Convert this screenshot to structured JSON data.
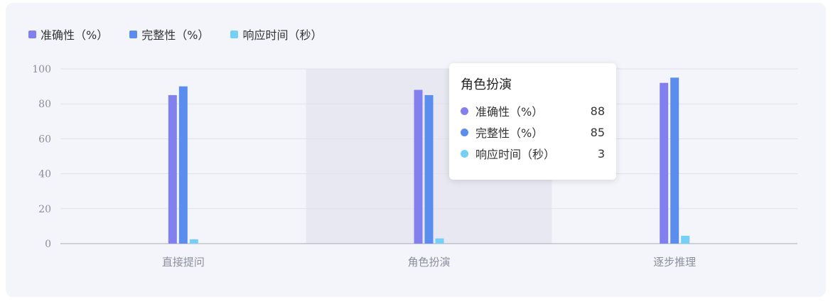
{
  "chart_data": {
    "type": "bar",
    "categories": [
      "直接提问",
      "角色扮演",
      "逐步推理"
    ],
    "series": [
      {
        "name": "准确性（%）",
        "values": [
          85,
          88,
          92
        ],
        "color": "#8280ee"
      },
      {
        "name": "完整性（%）",
        "values": [
          90,
          85,
          95
        ],
        "color": "#5b8def"
      },
      {
        "name": "响应时间（秒）",
        "values": [
          2.5,
          3,
          4.5
        ],
        "color": "#76d0f5"
      }
    ],
    "ylim": [
      0,
      100
    ],
    "yticks": [
      0,
      20,
      40,
      60,
      80,
      100
    ],
    "grid": true,
    "legend": "top-left",
    "highlighted_category": "角色扮演"
  },
  "tooltip": {
    "title": "角色扮演",
    "rows": [
      {
        "label": "准确性（%）",
        "value": "88"
      },
      {
        "label": "完整性（%）",
        "value": "85"
      },
      {
        "label": "响应时间（秒）",
        "value": "3"
      }
    ]
  }
}
